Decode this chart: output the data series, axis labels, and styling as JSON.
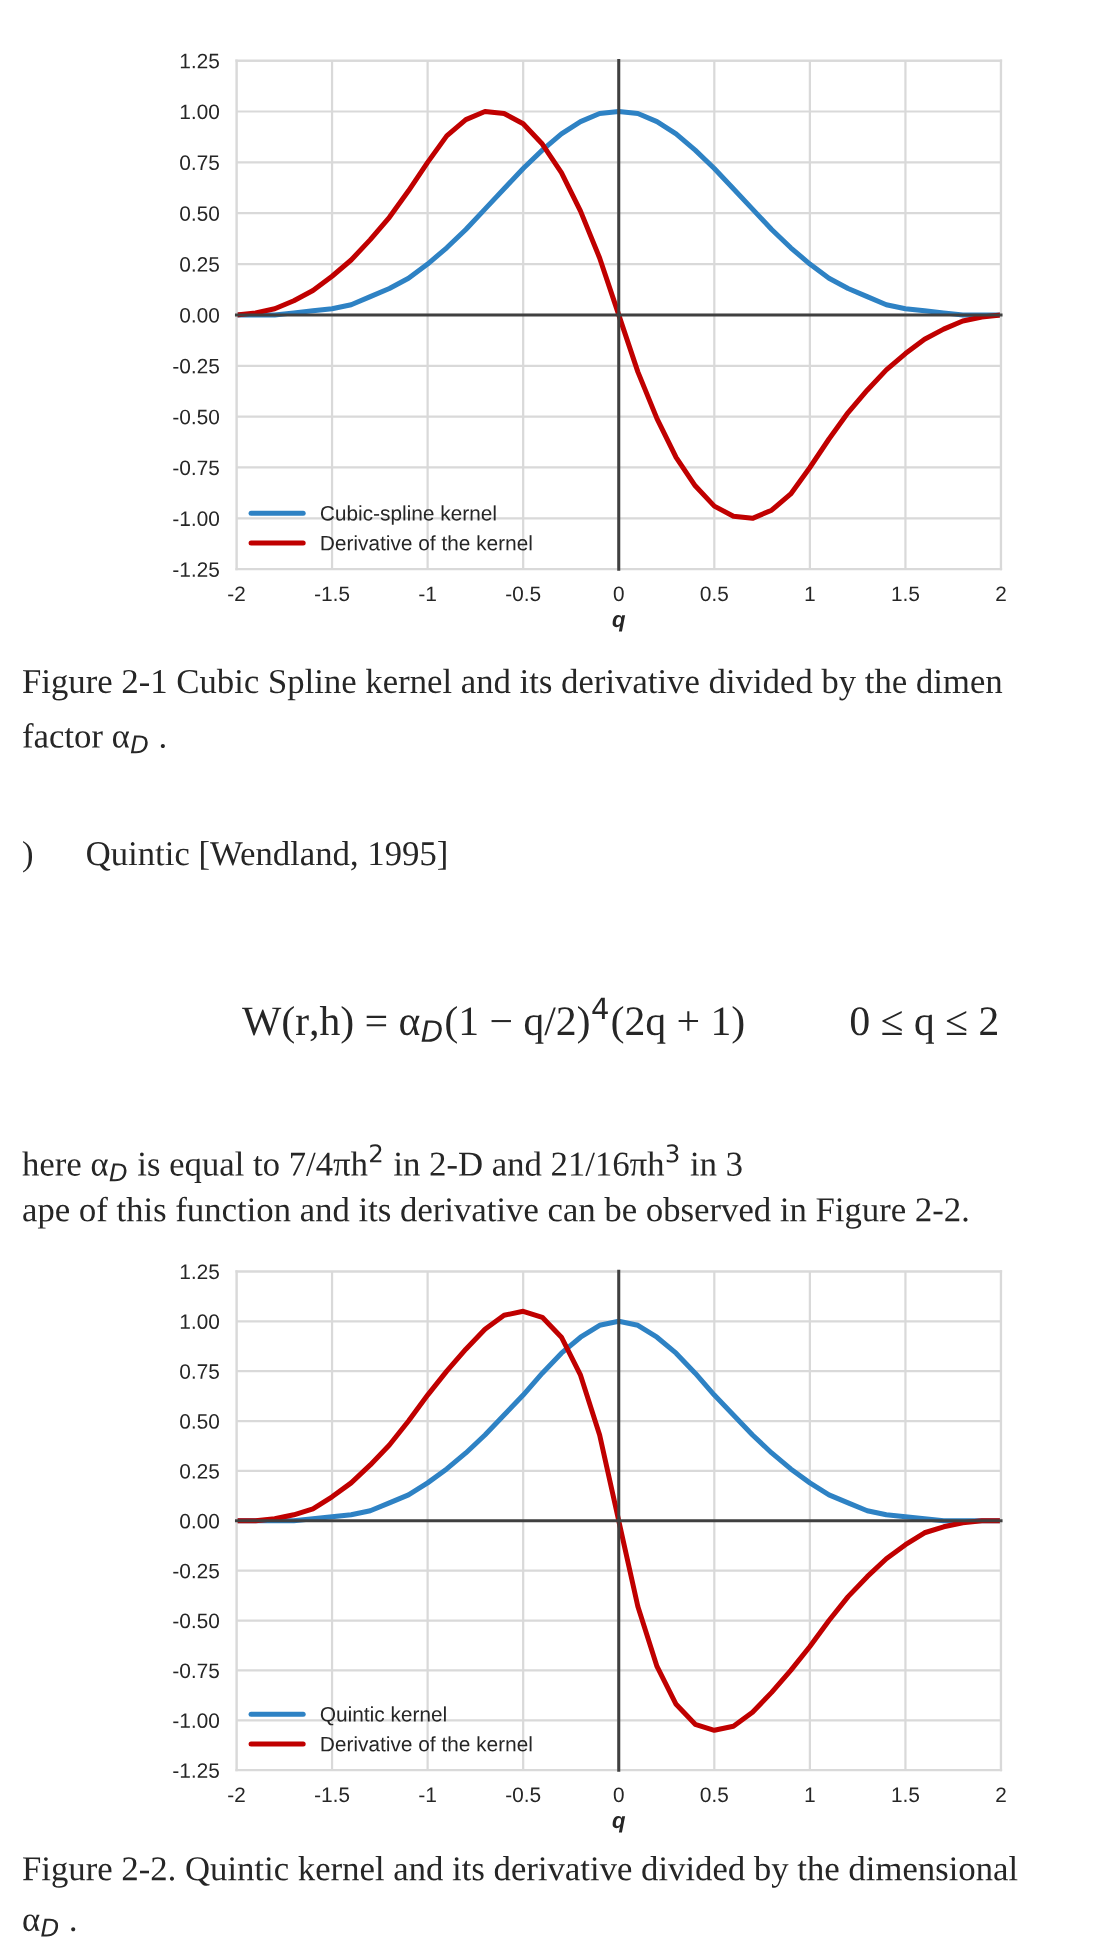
{
  "chart_data": [
    {
      "type": "line",
      "xlabel": "q",
      "x": [
        -2,
        -1.9,
        -1.8,
        -1.7,
        -1.6,
        -1.5,
        -1.4,
        -1.3,
        -1.2,
        -1.1,
        -1,
        -0.9,
        -0.8,
        -0.7,
        -0.6,
        -0.5,
        -0.4,
        -0.3,
        -0.2,
        -0.1,
        0,
        0.1,
        0.2,
        0.3,
        0.4,
        0.5,
        0.6,
        0.7,
        0.8,
        0.9,
        1,
        1.1,
        1.2,
        1.3,
        1.4,
        1.5,
        1.6,
        1.7,
        1.8,
        1.9,
        2
      ],
      "series": [
        {
          "name": "Cubic-spline kernel",
          "color": "#2e82c4",
          "values": [
            0.0,
            0.0,
            0.0,
            0.01,
            0.02,
            0.03,
            0.05,
            0.09,
            0.13,
            0.18,
            0.25,
            0.33,
            0.42,
            0.52,
            0.62,
            0.72,
            0.81,
            0.89,
            0.95,
            0.99,
            1.0,
            0.99,
            0.95,
            0.89,
            0.81,
            0.72,
            0.62,
            0.52,
            0.42,
            0.33,
            0.25,
            0.18,
            0.13,
            0.09,
            0.05,
            0.03,
            0.02,
            0.01,
            0.0,
            0.0,
            0.0
          ]
        },
        {
          "name": "Derivative of the kernel",
          "color": "#c00000",
          "values": [
            0.0,
            0.01,
            0.03,
            0.07,
            0.12,
            0.19,
            0.27,
            0.37,
            0.48,
            0.61,
            0.75,
            0.88,
            0.96,
            1.0,
            0.99,
            0.94,
            0.84,
            0.7,
            0.51,
            0.28,
            0,
            -0.28,
            -0.51,
            -0.7,
            -0.84,
            -0.94,
            -0.99,
            -1.0,
            -0.96,
            -0.88,
            -0.75,
            -0.61,
            -0.48,
            -0.37,
            -0.27,
            -0.19,
            -0.12,
            -0.07,
            -0.03,
            -0.01,
            0.0
          ]
        }
      ],
      "xlim": [
        -2,
        2
      ],
      "xticks": [
        -2,
        -1.5,
        -1,
        -0.5,
        0,
        0.5,
        1,
        1.5,
        2
      ],
      "ylim": [
        -1.25,
        1.25
      ],
      "yticks": [
        {
          "value": -1.25,
          "label": "-1.25"
        },
        {
          "value": -1,
          "label": "-1.00"
        },
        {
          "value": -0.75,
          "label": "-0.75"
        },
        {
          "value": -0.5,
          "label": "-0.50"
        },
        {
          "value": -0.25,
          "label": "-0.25"
        },
        {
          "value": 0,
          "label": "0.00"
        },
        {
          "value": 0.25,
          "label": "0.25"
        },
        {
          "value": 0.5,
          "label": "0.50"
        },
        {
          "value": 0.75,
          "label": "0.75"
        },
        {
          "value": 1,
          "label": "1.00"
        },
        {
          "value": 1.25,
          "label": "1.25"
        }
      ],
      "grid": true,
      "legend": "bottom left",
      "marker": "none",
      "line_style": "solid",
      "annotations": [
        "Figure 2-1 Cubic Spline kernel and its derivative divided by the dimen",
        "factor α$_{D}$ .",
        ")      Quintic [Wendland, 1995]",
        "W(r,h) = α$_{D}$(1 − q/2)$^{4}$(2q + 1)          0 ≤ q ≤ 2",
        "here α$_{D}$ is equal to 7/4πh$^{2}$ in 2-D and 21/16πh$^{3}$ in 3",
        "ape of this function and its derivative can be observed in Figure 2-2."
      ]
    },
    {
      "type": "line",
      "xlabel": "q",
      "x": [
        -2,
        -1.9,
        -1.8,
        -1.7,
        -1.6,
        -1.5,
        -1.4,
        -1.3,
        -1.2,
        -1.1,
        -1,
        -0.9,
        -0.8,
        -0.7,
        -0.6,
        -0.5,
        -0.4,
        -0.3,
        -0.2,
        -0.1,
        0,
        0.1,
        0.2,
        0.3,
        0.4,
        0.5,
        0.6,
        0.7,
        0.8,
        0.9,
        1,
        1.1,
        1.2,
        1.3,
        1.4,
        1.5,
        1.6,
        1.7,
        1.8,
        1.9,
        2
      ],
      "series": [
        {
          "name": "Quintic kernel",
          "color": "#2e82c4",
          "values": [
            0.0,
            0.0,
            0.0,
            0.0,
            0.01,
            0.02,
            0.03,
            0.05,
            0.09,
            0.13,
            0.19,
            0.26,
            0.34,
            0.43,
            0.53,
            0.63,
            0.74,
            0.84,
            0.92,
            0.98,
            1.0,
            0.98,
            0.92,
            0.84,
            0.74,
            0.63,
            0.53,
            0.43,
            0.34,
            0.26,
            0.19,
            0.13,
            0.09,
            0.05,
            0.03,
            0.02,
            0.01,
            0.0,
            0.0,
            0.0,
            0.0
          ]
        },
        {
          "name": "Derivative of the kernel",
          "color": "#c00000",
          "values": [
            0.0,
            0.0,
            0.01,
            0.03,
            0.06,
            0.12,
            0.19,
            0.28,
            0.38,
            0.5,
            0.63,
            0.75,
            0.86,
            0.96,
            1.03,
            1.05,
            1.02,
            0.92,
            0.73,
            0.43,
            0,
            -0.43,
            -0.73,
            -0.92,
            -1.02,
            -1.05,
            -1.03,
            -0.96,
            -0.86,
            -0.75,
            -0.63,
            -0.5,
            -0.38,
            -0.28,
            -0.19,
            -0.12,
            -0.06,
            -0.03,
            -0.01,
            0.0,
            0.0
          ]
        }
      ],
      "xlim": [
        -2,
        2
      ],
      "xticks": [
        -2,
        -1.5,
        -1,
        -0.5,
        0,
        0.5,
        1,
        1.5,
        2
      ],
      "ylim": [
        -1.25,
        1.25
      ],
      "yticks": [
        {
          "value": -1.25,
          "label": "-1.25"
        },
        {
          "value": -1,
          "label": "-1.00"
        },
        {
          "value": -0.75,
          "label": "-0.75"
        },
        {
          "value": -0.5,
          "label": "-0.50"
        },
        {
          "value": -0.25,
          "label": "-0.25"
        },
        {
          "value": 0,
          "label": "0.00"
        },
        {
          "value": 0.25,
          "label": "0.25"
        },
        {
          "value": 0.5,
          "label": "0.50"
        },
        {
          "value": 0.75,
          "label": "0.75"
        },
        {
          "value": 1,
          "label": "1.00"
        },
        {
          "value": 1.25,
          "label": "1.25"
        }
      ],
      "grid": true,
      "legend": "bottom left",
      "marker": "none",
      "line_style": "solid",
      "annotations": [
        "Figure 2-2. Quintic kernel and its derivative divided by the dimensional",
        "α$_{D}$ ."
      ]
    }
  ]
}
